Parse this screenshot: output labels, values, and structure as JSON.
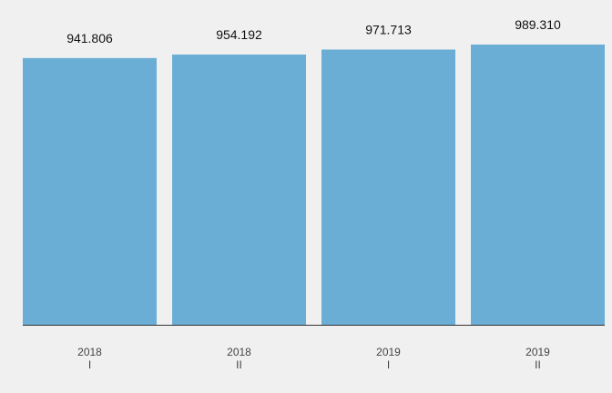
{
  "chart_data": {
    "type": "bar",
    "title": "",
    "xlabel": "",
    "ylabel": "",
    "categories": [
      {
        "year": "2018",
        "period": "I"
      },
      {
        "year": "2018",
        "period": "II"
      },
      {
        "year": "2019",
        "period": "I"
      },
      {
        "year": "2019",
        "period": "II"
      }
    ],
    "values": [
      941.806,
      954.192,
      971.713,
      989.31
    ],
    "value_labels": [
      "941.806",
      "954.192",
      "971.713",
      "989.310"
    ],
    "ylim": [
      0,
      1000
    ],
    "grid": false,
    "legend": "none",
    "colors": {
      "bar": "#6aaed6",
      "axis": "#333333",
      "background": "#f0f0f0"
    }
  }
}
